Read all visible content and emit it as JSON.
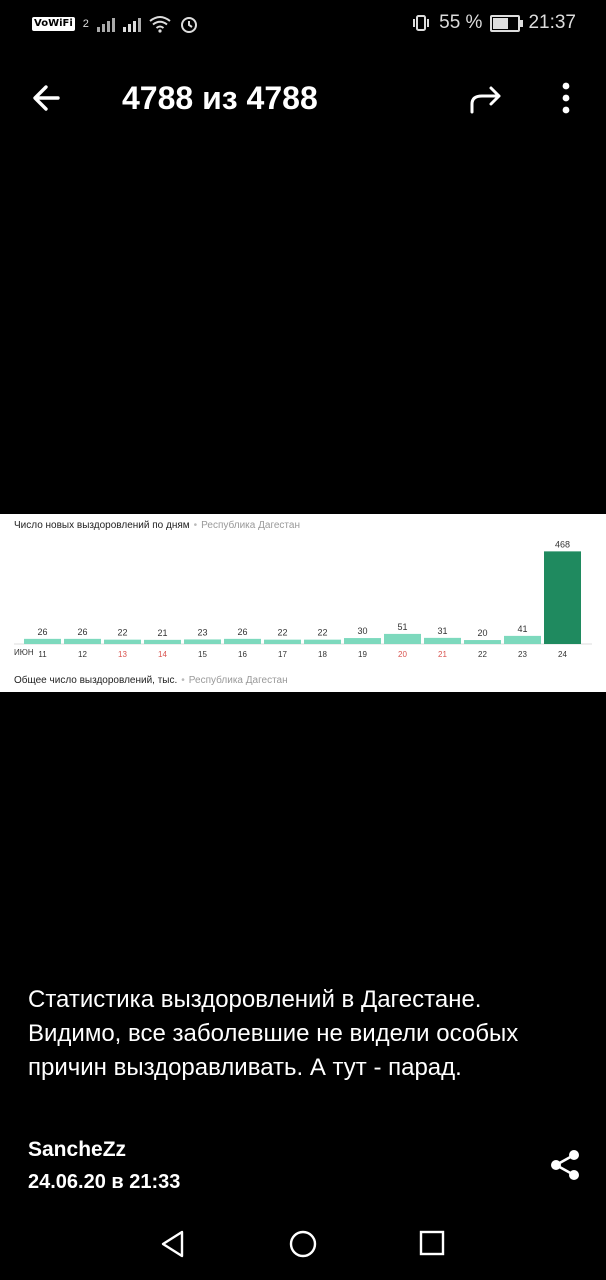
{
  "status_bar": {
    "vowifi": "VoWiFi",
    "sim": "2",
    "battery_text": "55 %",
    "time": "21:37"
  },
  "app_bar": {
    "title": "4788 из 4788",
    "back_icon": "arrow-left-icon",
    "share_icon": "forward-arrow-icon",
    "more_icon": "more-vertical-icon"
  },
  "image": {
    "chart_title": "Число новых выздоровлений по дням",
    "region": "Республика Дагестан",
    "footer_title": "Общее число выздоровлений, тыс.",
    "month": "ИЮН"
  },
  "chart_data": {
    "type": "bar",
    "title": "Число новых выздоровлений по дням",
    "subtitle": "Республика Дагестан",
    "categories": [
      "11",
      "12",
      "13",
      "14",
      "15",
      "16",
      "17",
      "18",
      "19",
      "20",
      "21",
      "22",
      "23",
      "24"
    ],
    "values": [
      26,
      26,
      22,
      21,
      23,
      26,
      22,
      22,
      30,
      51,
      31,
      20,
      41,
      468
    ],
    "weekend_categories": [
      "13",
      "14",
      "20",
      "21"
    ],
    "ylim": [
      0,
      480
    ],
    "colors": {
      "bar": "#7dd9bd",
      "highlight": "#1f8a5f",
      "weekend_label": "#d9534f"
    }
  },
  "post": {
    "caption": "Статистика выздоровлений в Дагестане. Видимо, все заболевшие не видели особых причин выздоравливать. А тут - парад.",
    "author": "SancheZz",
    "date": "24.06.20 в 21:33"
  },
  "nav": {
    "back_icon": "nav-back-icon",
    "home_icon": "nav-home-icon",
    "recent_icon": "nav-recent-icon"
  }
}
